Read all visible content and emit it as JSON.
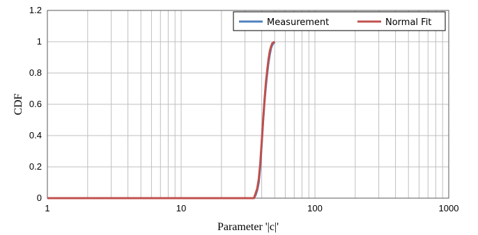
{
  "chart_data": {
    "type": "line",
    "title": "",
    "xlabel": "Parameter '|c|'",
    "ylabel": "CDF",
    "xscale": "log",
    "xlim": [
      1,
      1000
    ],
    "ylim": [
      0,
      1.2
    ],
    "x_ticks": [
      "1",
      "10",
      "100",
      "1000"
    ],
    "y_ticks": [
      "0",
      "0.2",
      "0.4",
      "0.6",
      "0.8",
      "1",
      "1.2"
    ],
    "grid": true,
    "legend_position": "top-right",
    "series": [
      {
        "name": "Measurement",
        "color": "#4f81bd",
        "points": [
          [
            1,
            0
          ],
          [
            30,
            0
          ],
          [
            35,
            0
          ],
          [
            36,
            0.02
          ],
          [
            37,
            0.05
          ],
          [
            38,
            0.1
          ],
          [
            39,
            0.2
          ],
          [
            40,
            0.35
          ],
          [
            41,
            0.5
          ],
          [
            42,
            0.62
          ],
          [
            43,
            0.72
          ],
          [
            44,
            0.8
          ],
          [
            45,
            0.87
          ],
          [
            46,
            0.92
          ],
          [
            47,
            0.96
          ],
          [
            48,
            0.98
          ],
          [
            50,
            1.0
          ]
        ]
      },
      {
        "name": "Normal Fit",
        "color": "#c0504d",
        "points": [
          [
            1,
            0
          ],
          [
            30,
            0
          ],
          [
            35,
            0
          ],
          [
            36,
            0.03
          ],
          [
            37,
            0.06
          ],
          [
            38,
            0.12
          ],
          [
            39,
            0.22
          ],
          [
            40,
            0.36
          ],
          [
            41,
            0.5
          ],
          [
            42,
            0.63
          ],
          [
            43,
            0.74
          ],
          [
            44,
            0.82
          ],
          [
            45,
            0.89
          ],
          [
            46,
            0.94
          ],
          [
            47,
            0.97
          ],
          [
            48,
            0.99
          ],
          [
            50,
            1.0
          ]
        ]
      }
    ]
  }
}
